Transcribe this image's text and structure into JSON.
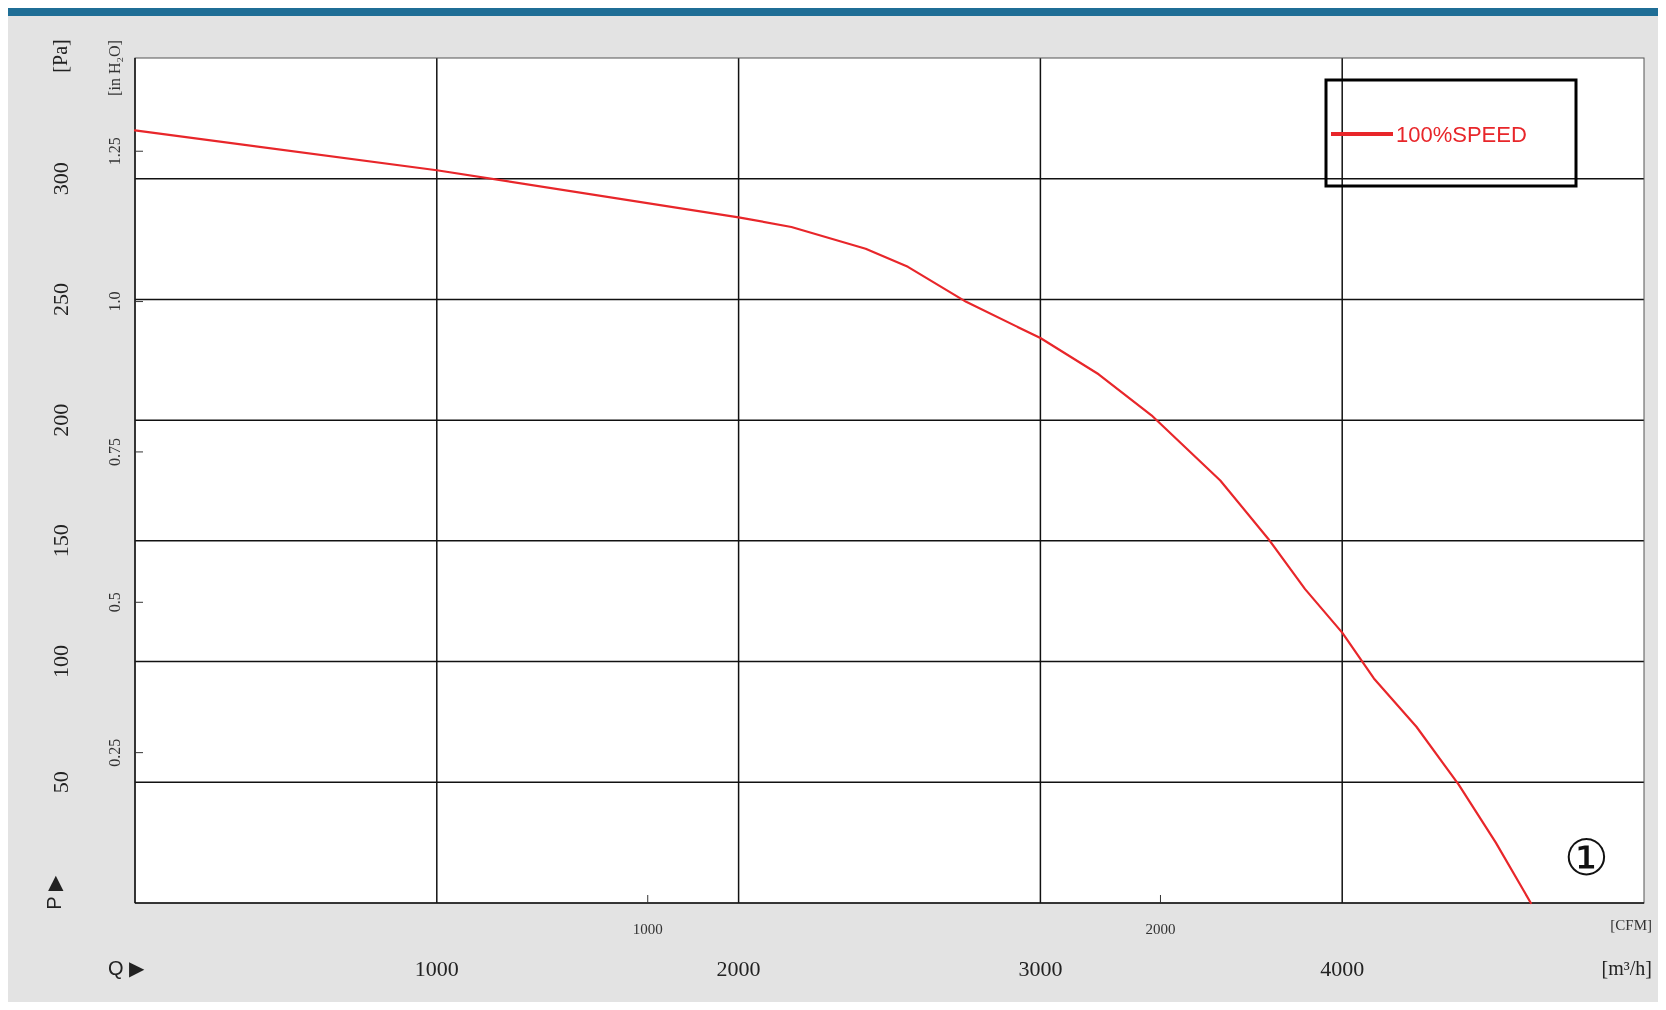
{
  "chart_data": {
    "type": "line",
    "xlabel": "[m³/h]",
    "ylabel": "[Pa]",
    "x2label": "[CFM]",
    "y2label": "[in H₂O]",
    "annotations": [
      "P ▶",
      "Q ▶",
      "①"
    ],
    "xlim": [
      0,
      5000
    ],
    "xticks": [
      1000,
      2000,
      3000,
      4000
    ],
    "ylim": [
      0,
      350
    ],
    "yticks": [
      50,
      100,
      150,
      200,
      250,
      300
    ],
    "x2lim": [
      0,
      2943
    ],
    "x2ticks": [
      1000,
      2000
    ],
    "y2lim": [
      0,
      1.405
    ],
    "y2ticks": [
      0.25,
      0.5,
      0.75,
      {
        "value": 1,
        "label": "1.0"
      },
      1.25
    ],
    "grid": true,
    "legend": "top right",
    "line_style": "solid",
    "series": [
      {
        "name": "100%SPEED",
        "color": "#e8262a",
        "x": [
          0,
          1000,
          2000,
          2175,
          2421,
          2561,
          2754,
          3000,
          3193,
          3368,
          3596,
          3754,
          3877,
          4000,
          4105,
          4246,
          4386,
          4509,
          4625
        ],
        "values": [
          320,
          303.5,
          284,
          280,
          271,
          263.5,
          249,
          234,
          219,
          202,
          175,
          151,
          130,
          112,
          93,
          73,
          49,
          25,
          0
        ]
      }
    ]
  }
}
